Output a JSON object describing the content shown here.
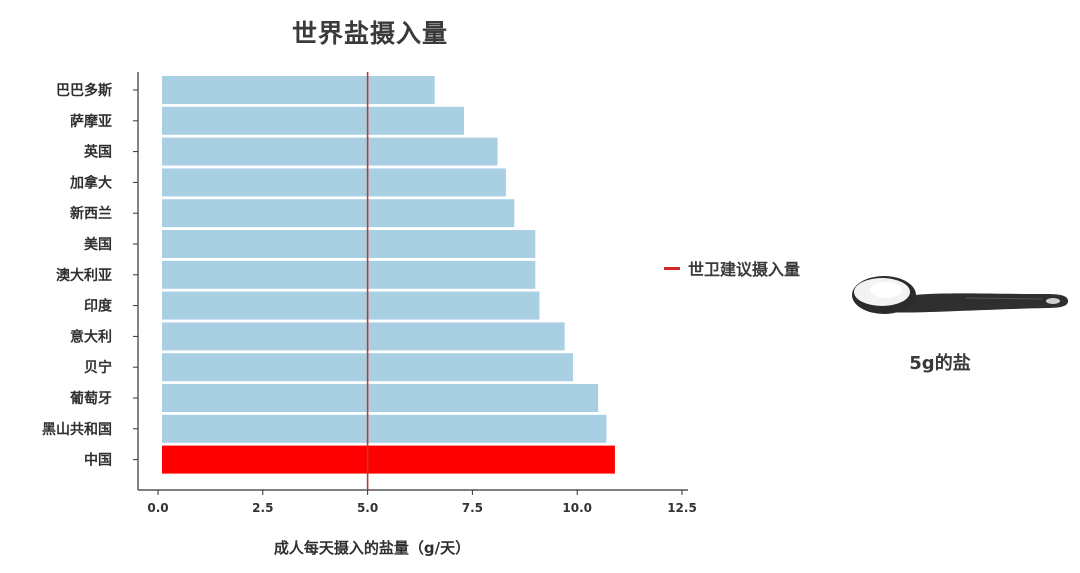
{
  "chart_data": {
    "type": "bar",
    "orientation": "horizontal",
    "title": "世界盐摄入量",
    "categories": [
      "巴巴多斯",
      "萨摩亚",
      "英国",
      "加拿大",
      "新西兰",
      "美国",
      "澳大利亚",
      "印度",
      "意大利",
      "贝宁",
      "葡萄牙",
      "黑山共和国",
      "中国"
    ],
    "values": [
      6.6,
      7.3,
      8.1,
      8.3,
      8.5,
      9.0,
      9.0,
      9.1,
      9.7,
      9.9,
      10.5,
      10.7,
      10.9
    ],
    "highlight": "中国",
    "xlabel": "成人每天摄入的盐量（g/天）",
    "xlim": [
      0,
      12.5
    ],
    "xticks": [
      "0.0",
      "2.5",
      "5.0",
      "7.5",
      "10.0",
      "12.5"
    ],
    "reference_line": {
      "value": 5.0,
      "label": "世卫建议摄入量"
    },
    "colors": {
      "bar": "#a9cfe2",
      "highlight": "#ff0000",
      "reference": "#c0392b"
    }
  },
  "side_panel": {
    "spoon_caption": "5g的盐",
    "icon": "measuring-spoon-icon"
  }
}
